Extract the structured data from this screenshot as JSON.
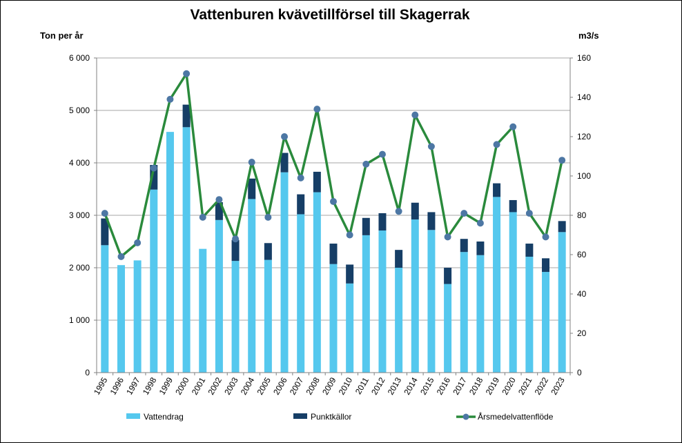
{
  "chart_data": {
    "type": "bar",
    "title": "Vattenburen kvävetillförsel till Skagerrak",
    "ylabel_left": "Ton per år",
    "ylabel_right": "m3/s",
    "ylim_left": [
      0,
      6000
    ],
    "ylim_right": [
      0,
      160
    ],
    "yticks_left": [
      "0",
      "1 000",
      "2 000",
      "3 000",
      "4 000",
      "5 000",
      "6 000"
    ],
    "yticks_right": [
      "0",
      "20",
      "40",
      "60",
      "80",
      "100",
      "120",
      "140",
      "160"
    ],
    "grid": true,
    "legend_position": "bottom",
    "categories": [
      "1995",
      "1996",
      "1997",
      "1998",
      "1999",
      "2000",
      "2001",
      "2002",
      "2003",
      "2004",
      "2005",
      "2006",
      "2007",
      "2008",
      "2009",
      "2010",
      "2011",
      "2012",
      "2013",
      "2014",
      "2015",
      "2016",
      "2017",
      "2018",
      "2019",
      "2020",
      "2021",
      "2022",
      "2023"
    ],
    "series": [
      {
        "name": "Vattendrag",
        "kind": "stacked-bar",
        "axis": "left",
        "color": "#55c8ee",
        "values": [
          2430,
          2050,
          2140,
          3490,
          4590,
          4680,
          2360,
          2910,
          2130,
          3310,
          2150,
          3820,
          3020,
          3440,
          2070,
          1700,
          2620,
          2710,
          2000,
          2920,
          2720,
          1690,
          2300,
          2240,
          3350,
          3060,
          2210,
          1920,
          2680
        ]
      },
      {
        "name": "Punktkällor",
        "kind": "stacked-bar",
        "axis": "left",
        "color": "#163e66",
        "values": [
          510,
          0,
          0,
          470,
          0,
          430,
          0,
          340,
          400,
          390,
          320,
          370,
          380,
          390,
          390,
          360,
          330,
          330,
          340,
          320,
          340,
          310,
          250,
          260,
          260,
          230,
          250,
          260,
          210
        ]
      },
      {
        "name": "Årsmedelvattenflöde",
        "kind": "line",
        "axis": "right",
        "color": "#2a8a3c",
        "marker_color": "#4d77a4",
        "values": [
          81,
          59,
          66,
          104,
          139,
          152,
          79,
          88,
          68,
          107,
          79,
          120,
          99,
          134,
          87,
          70,
          106,
          111,
          82,
          131,
          115,
          69,
          81,
          76,
          116,
          125,
          81,
          69,
          108
        ]
      }
    ]
  }
}
